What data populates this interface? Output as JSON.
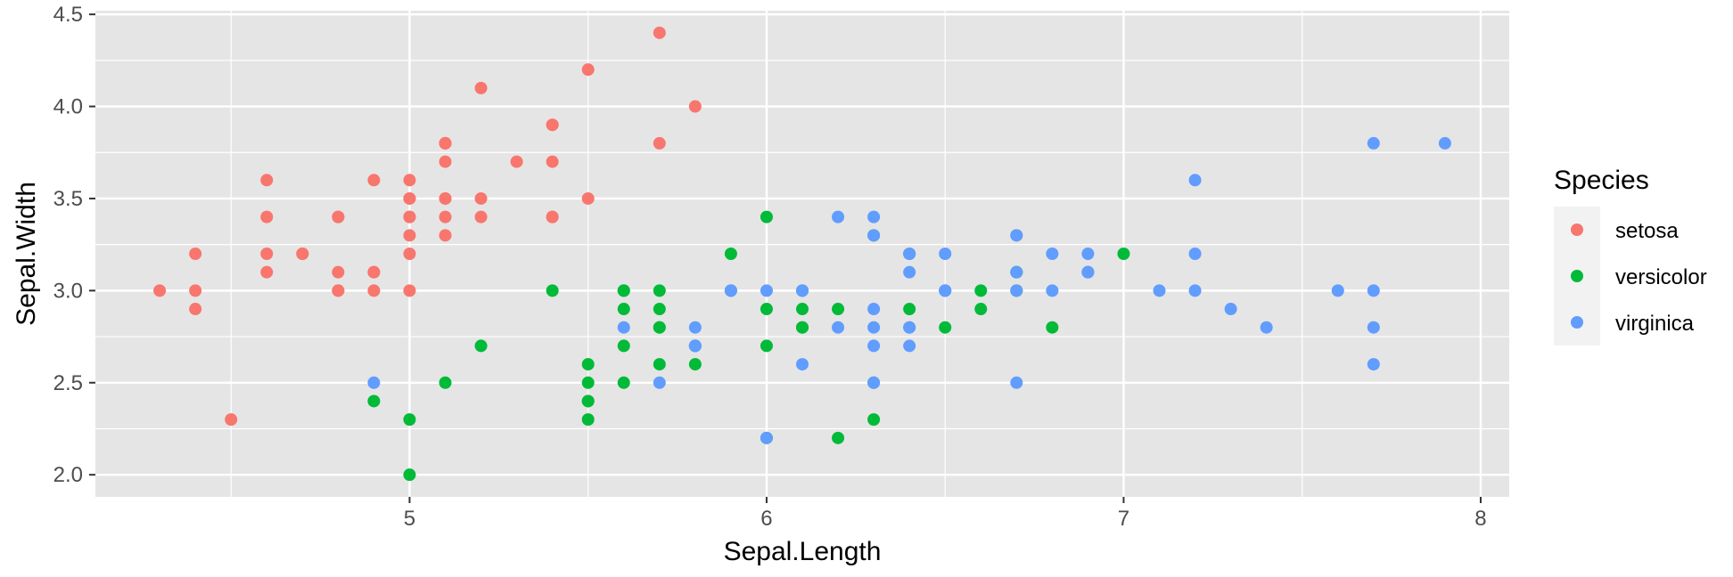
{
  "chart_data": {
    "type": "scatter",
    "title": "",
    "xlabel": "Sepal.Length",
    "ylabel": "Sepal.Width",
    "xlim": [
      4.12,
      8.08
    ],
    "ylim": [
      1.88,
      4.52
    ],
    "x_ticks": [
      5,
      6,
      7,
      8
    ],
    "x_tick_labels": [
      "5",
      "6",
      "7",
      "8"
    ],
    "y_ticks": [
      2.0,
      2.5,
      3.0,
      3.5,
      4.0,
      4.5
    ],
    "y_tick_labels": [
      "2.0",
      "2.5",
      "3.0",
      "3.5",
      "4.0",
      "4.5"
    ],
    "grid": true,
    "panel_background": "#E5E5E5",
    "legend": {
      "title": "Species",
      "position": "right",
      "entries": [
        "setosa",
        "versicolor",
        "virginica"
      ]
    },
    "series": [
      {
        "name": "setosa",
        "color": "#F8766D",
        "points": [
          [
            5.1,
            3.5
          ],
          [
            4.9,
            3.0
          ],
          [
            4.7,
            3.2
          ],
          [
            4.6,
            3.1
          ],
          [
            5.0,
            3.6
          ],
          [
            5.4,
            3.9
          ],
          [
            4.6,
            3.4
          ],
          [
            5.0,
            3.4
          ],
          [
            4.4,
            2.9
          ],
          [
            4.9,
            3.1
          ],
          [
            5.4,
            3.7
          ],
          [
            4.8,
            3.4
          ],
          [
            4.8,
            3.0
          ],
          [
            4.3,
            3.0
          ],
          [
            5.8,
            4.0
          ],
          [
            5.7,
            4.4
          ],
          [
            5.4,
            3.9
          ],
          [
            5.1,
            3.5
          ],
          [
            5.7,
            3.8
          ],
          [
            5.1,
            3.8
          ],
          [
            5.4,
            3.4
          ],
          [
            5.1,
            3.7
          ],
          [
            4.6,
            3.6
          ],
          [
            5.1,
            3.3
          ],
          [
            4.8,
            3.4
          ],
          [
            5.0,
            3.0
          ],
          [
            5.0,
            3.4
          ],
          [
            5.2,
            3.5
          ],
          [
            5.2,
            3.4
          ],
          [
            4.7,
            3.2
          ],
          [
            4.8,
            3.1
          ],
          [
            5.4,
            3.4
          ],
          [
            5.2,
            4.1
          ],
          [
            5.5,
            4.2
          ],
          [
            4.9,
            3.1
          ],
          [
            5.0,
            3.2
          ],
          [
            5.5,
            3.5
          ],
          [
            4.9,
            3.6
          ],
          [
            4.4,
            3.0
          ],
          [
            5.1,
            3.4
          ],
          [
            5.0,
            3.5
          ],
          [
            4.5,
            2.3
          ],
          [
            4.4,
            3.2
          ],
          [
            5.0,
            3.5
          ],
          [
            5.1,
            3.8
          ],
          [
            4.8,
            3.0
          ],
          [
            5.1,
            3.8
          ],
          [
            4.6,
            3.2
          ],
          [
            5.3,
            3.7
          ],
          [
            5.0,
            3.3
          ]
        ]
      },
      {
        "name": "versicolor",
        "color": "#00BA38",
        "points": [
          [
            7.0,
            3.2
          ],
          [
            6.4,
            3.2
          ],
          [
            6.9,
            3.1
          ],
          [
            5.5,
            2.3
          ],
          [
            6.5,
            2.8
          ],
          [
            5.7,
            2.8
          ],
          [
            6.3,
            3.3
          ],
          [
            4.9,
            2.4
          ],
          [
            6.6,
            2.9
          ],
          [
            5.2,
            2.7
          ],
          [
            5.0,
            2.0
          ],
          [
            5.9,
            3.0
          ],
          [
            6.0,
            2.2
          ],
          [
            6.1,
            2.9
          ],
          [
            5.6,
            2.9
          ],
          [
            6.7,
            3.1
          ],
          [
            5.6,
            3.0
          ],
          [
            5.8,
            2.7
          ],
          [
            6.2,
            2.2
          ],
          [
            5.6,
            2.5
          ],
          [
            5.9,
            3.2
          ],
          [
            6.1,
            2.8
          ],
          [
            6.3,
            2.5
          ],
          [
            6.1,
            2.8
          ],
          [
            6.4,
            2.9
          ],
          [
            6.6,
            3.0
          ],
          [
            6.8,
            2.8
          ],
          [
            6.7,
            3.0
          ],
          [
            6.0,
            2.9
          ],
          [
            5.7,
            2.6
          ],
          [
            5.5,
            2.4
          ],
          [
            5.5,
            2.4
          ],
          [
            5.8,
            2.7
          ],
          [
            6.0,
            2.7
          ],
          [
            5.4,
            3.0
          ],
          [
            6.0,
            3.4
          ],
          [
            6.7,
            3.1
          ],
          [
            6.3,
            2.3
          ],
          [
            5.6,
            3.0
          ],
          [
            5.5,
            2.5
          ],
          [
            5.5,
            2.6
          ],
          [
            6.1,
            3.0
          ],
          [
            5.8,
            2.6
          ],
          [
            5.0,
            2.3
          ],
          [
            5.6,
            2.7
          ],
          [
            5.7,
            3.0
          ],
          [
            5.7,
            2.9
          ],
          [
            6.2,
            2.9
          ],
          [
            5.1,
            2.5
          ],
          [
            5.7,
            2.8
          ]
        ]
      },
      {
        "name": "virginica",
        "color": "#619CFF",
        "points": [
          [
            6.3,
            3.3
          ],
          [
            5.8,
            2.7
          ],
          [
            7.1,
            3.0
          ],
          [
            6.3,
            2.9
          ],
          [
            6.5,
            3.0
          ],
          [
            7.6,
            3.0
          ],
          [
            4.9,
            2.5
          ],
          [
            7.3,
            2.9
          ],
          [
            6.7,
            2.5
          ],
          [
            7.2,
            3.6
          ],
          [
            6.5,
            3.2
          ],
          [
            6.4,
            2.7
          ],
          [
            6.8,
            3.0
          ],
          [
            5.7,
            2.5
          ],
          [
            5.8,
            2.8
          ],
          [
            6.4,
            3.2
          ],
          [
            6.5,
            3.0
          ],
          [
            7.7,
            3.8
          ],
          [
            7.7,
            2.6
          ],
          [
            6.0,
            2.2
          ],
          [
            6.9,
            3.2
          ],
          [
            5.6,
            2.8
          ],
          [
            7.7,
            2.8
          ],
          [
            6.3,
            2.7
          ],
          [
            6.7,
            3.3
          ],
          [
            7.2,
            3.2
          ],
          [
            6.2,
            2.8
          ],
          [
            6.1,
            3.0
          ],
          [
            6.4,
            2.8
          ],
          [
            7.2,
            3.0
          ],
          [
            7.4,
            2.8
          ],
          [
            7.9,
            3.8
          ],
          [
            6.4,
            2.8
          ],
          [
            6.3,
            2.8
          ],
          [
            6.1,
            2.6
          ],
          [
            7.7,
            3.0
          ],
          [
            6.3,
            3.4
          ],
          [
            6.4,
            3.1
          ],
          [
            6.0,
            3.0
          ],
          [
            6.9,
            3.1
          ],
          [
            6.7,
            3.1
          ],
          [
            6.9,
            3.1
          ],
          [
            5.8,
            2.7
          ],
          [
            6.8,
            3.2
          ],
          [
            6.7,
            3.3
          ],
          [
            6.7,
            3.0
          ],
          [
            6.3,
            2.5
          ],
          [
            6.5,
            3.0
          ],
          [
            6.2,
            3.4
          ],
          [
            5.9,
            3.0
          ]
        ]
      }
    ]
  }
}
